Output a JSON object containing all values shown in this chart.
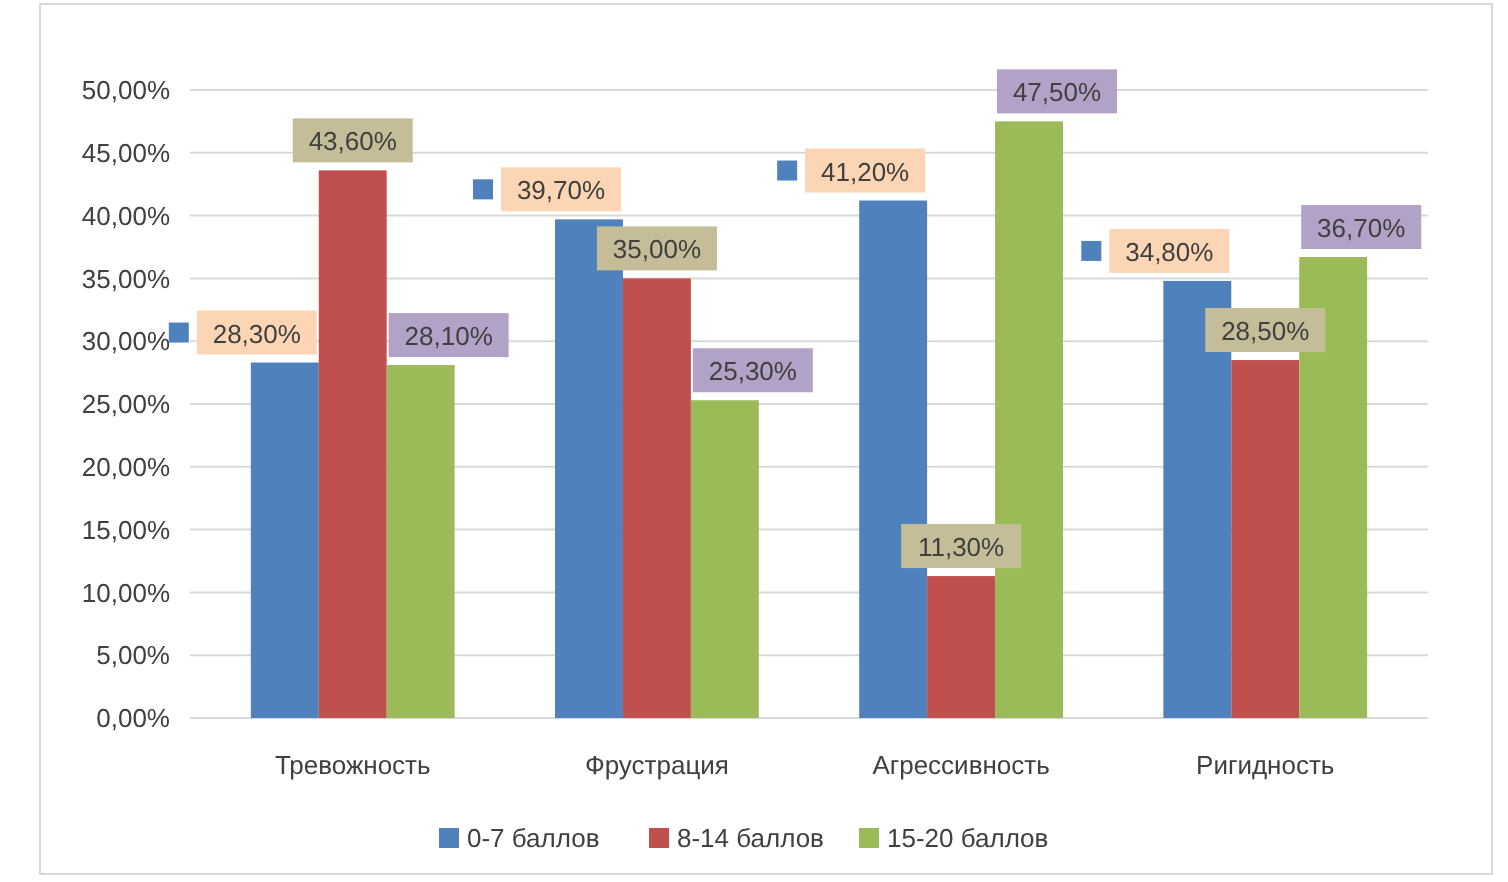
{
  "chart_data": {
    "type": "bar",
    "categories": [
      "Тревожность",
      "Фрустрация",
      "Агрессивность",
      "Ригидность"
    ],
    "series": [
      {
        "name": "0-7 баллов",
        "color": "#4f81bd",
        "values": [
          28.3,
          39.7,
          41.2,
          34.8
        ],
        "value_labels": [
          "28,30%",
          "39,70%",
          "41,20%",
          "34,80%"
        ]
      },
      {
        "name": "8-14 баллов",
        "color": "#c0504d",
        "values": [
          43.6,
          35.0,
          11.3,
          28.5
        ],
        "value_labels": [
          "43,60%",
          "35,00%",
          "11,30%",
          "28,50%"
        ]
      },
      {
        "name": "15-20 баллов",
        "color": "#9bbb59",
        "values": [
          28.1,
          25.3,
          47.5,
          36.7
        ],
        "value_labels": [
          "28,10%",
          "25,30%",
          "47,50%",
          "36,70%"
        ]
      }
    ],
    "ylim": [
      0,
      50
    ],
    "yticks": [
      {
        "value": 0,
        "label": "0,00%"
      },
      {
        "value": 5,
        "label": "5,00%"
      },
      {
        "value": 10,
        "label": "10,00%"
      },
      {
        "value": 15,
        "label": "15,00%"
      },
      {
        "value": 20,
        "label": "20,00%"
      },
      {
        "value": 25,
        "label": "25,00%"
      },
      {
        "value": 30,
        "label": "30,00%"
      },
      {
        "value": 35,
        "label": "35,00%"
      },
      {
        "value": 40,
        "label": "40,00%"
      },
      {
        "value": 45,
        "label": "45,00%"
      },
      {
        "value": 50,
        "label": "50,00%"
      }
    ],
    "grid": "y",
    "legend": "bottom"
  }
}
